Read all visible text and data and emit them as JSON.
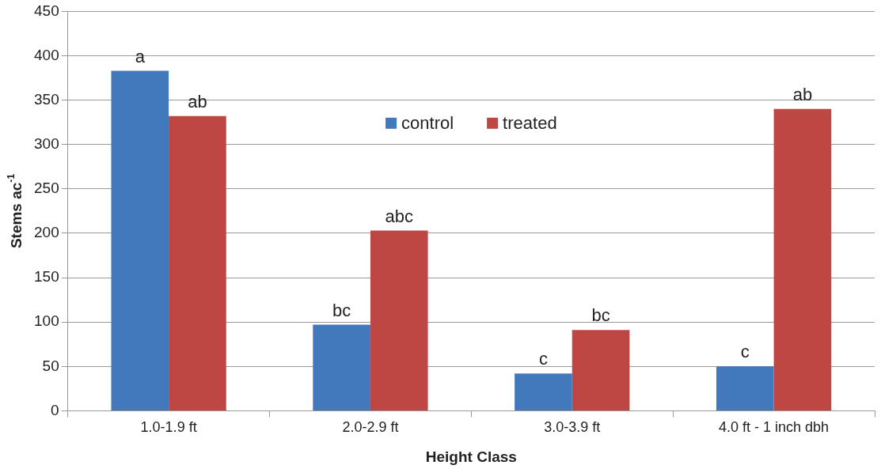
{
  "chart_data": {
    "type": "bar",
    "xlabel": "Height Class",
    "ylabel": "Stems ac$^{-1}$",
    "categories": [
      "1.0-1.9 ft",
      "2.0-2.9 ft",
      "3.0-3.9 ft",
      "4.0 ft - 1 inch dbh"
    ],
    "series": [
      {
        "name": "control",
        "color": "#4279bc",
        "values": [
          383,
          97,
          42,
          50
        ],
        "value_labels": [
          "a",
          "bc",
          "c",
          "c"
        ]
      },
      {
        "name": "treated",
        "color": "#be4643",
        "values": [
          332,
          203,
          91,
          340
        ],
        "value_labels": [
          "ab",
          "abc",
          "bc",
          "ab"
        ]
      }
    ],
    "ylim": [
      0,
      450
    ],
    "yticks": [
      0,
      50,
      100,
      150,
      200,
      250,
      300,
      350,
      400,
      450
    ],
    "grid": "y",
    "legend": "top"
  }
}
